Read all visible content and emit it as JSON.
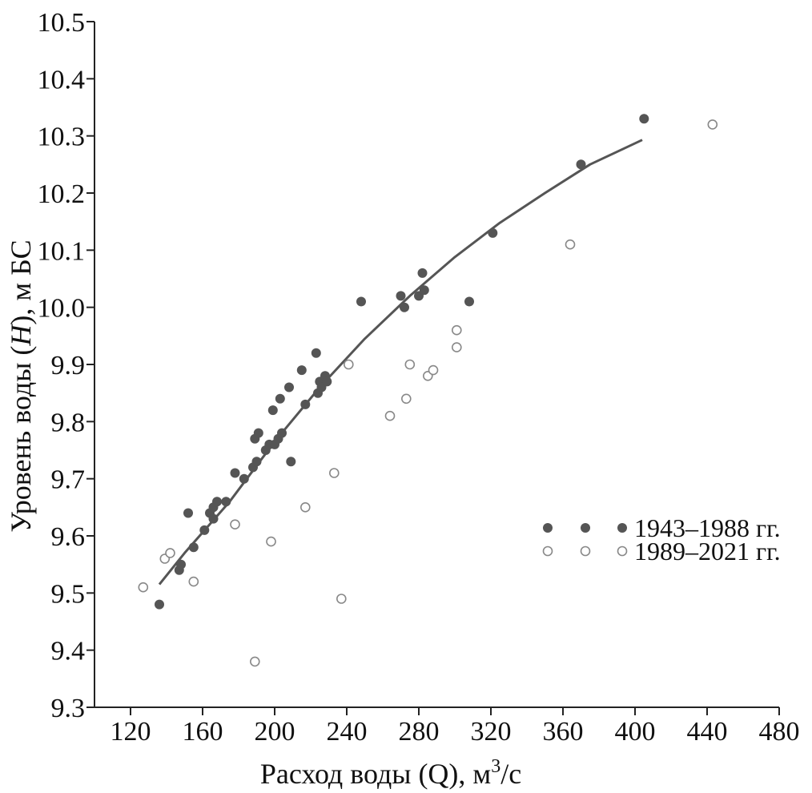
{
  "chart_data": {
    "type": "scatter",
    "xlabel": "Расход воды (Q), м",
    "xlabel_sup": "3",
    "xlabel_tail": "/с",
    "ylabel_pre": "Уровень воды (",
    "ylabel_var": "H",
    "ylabel_post": "), м БС",
    "xlim": [
      100,
      480
    ],
    "ylim": [
      9.3,
      10.5
    ],
    "xticks": [
      "120",
      "160",
      "200",
      "240",
      "280",
      "320",
      "360",
      "400",
      "440",
      "480"
    ],
    "xtick_values": [
      120,
      160,
      200,
      240,
      280,
      320,
      360,
      400,
      440,
      480
    ],
    "yticks": [
      "9.3",
      "9.4",
      "9.5",
      "9.6",
      "9.7",
      "9.8",
      "9.9",
      "10.0",
      "10.1",
      "10.2",
      "10.3",
      "10.4",
      "10.5"
    ],
    "ytick_values": [
      9.3,
      9.4,
      9.5,
      9.6,
      9.7,
      9.8,
      9.9,
      10.0,
      10.1,
      10.2,
      10.3,
      10.4,
      10.5
    ],
    "grid": false,
    "legend_position": "right-middle",
    "series": [
      {
        "name": "1943–1988 гг.",
        "marker": "filled-circle",
        "color": "#555555",
        "points": [
          [
            136,
            9.48
          ],
          [
            147,
            9.54
          ],
          [
            148,
            9.55
          ],
          [
            152,
            9.64
          ],
          [
            155,
            9.58
          ],
          [
            161,
            9.61
          ],
          [
            164,
            9.64
          ],
          [
            166,
            9.63
          ],
          [
            166,
            9.65
          ],
          [
            168,
            9.66
          ],
          [
            173,
            9.66
          ],
          [
            178,
            9.71
          ],
          [
            183,
            9.7
          ],
          [
            188,
            9.72
          ],
          [
            189,
            9.77
          ],
          [
            190,
            9.73
          ],
          [
            191,
            9.78
          ],
          [
            195,
            9.75
          ],
          [
            197,
            9.76
          ],
          [
            199,
            9.82
          ],
          [
            200,
            9.76
          ],
          [
            202,
            9.77
          ],
          [
            203,
            9.84
          ],
          [
            204,
            9.78
          ],
          [
            208,
            9.86
          ],
          [
            209,
            9.73
          ],
          [
            215,
            9.89
          ],
          [
            217,
            9.83
          ],
          [
            223,
            9.92
          ],
          [
            224,
            9.85
          ],
          [
            225,
            9.87
          ],
          [
            226,
            9.86
          ],
          [
            228,
            9.88
          ],
          [
            229,
            9.87
          ],
          [
            248,
            10.01
          ],
          [
            270,
            10.02
          ],
          [
            272,
            10.0
          ],
          [
            280,
            10.02
          ],
          [
            282,
            10.06
          ],
          [
            283,
            10.03
          ],
          [
            308,
            10.01
          ],
          [
            321,
            10.13
          ],
          [
            370,
            10.25
          ],
          [
            405,
            10.33
          ]
        ]
      },
      {
        "name": "1989–2021 гг.",
        "marker": "open-circle",
        "color": "#888888",
        "points": [
          [
            127,
            9.51
          ],
          [
            139,
            9.56
          ],
          [
            142,
            9.57
          ],
          [
            155,
            9.52
          ],
          [
            178,
            9.62
          ],
          [
            189,
            9.38
          ],
          [
            198,
            9.59
          ],
          [
            217,
            9.65
          ],
          [
            233,
            9.71
          ],
          [
            237,
            9.49
          ],
          [
            241,
            9.9
          ],
          [
            264,
            9.81
          ],
          [
            273,
            9.84
          ],
          [
            275,
            9.9
          ],
          [
            285,
            9.88
          ],
          [
            288,
            9.89
          ],
          [
            301,
            9.96
          ],
          [
            301,
            9.93
          ],
          [
            364,
            10.11
          ],
          [
            443,
            10.32
          ]
        ]
      }
    ],
    "trendline": {
      "color": "#555555",
      "points": [
        [
          136,
          9.515
        ],
        [
          150,
          9.57
        ],
        [
          175,
          9.66
        ],
        [
          200,
          9.765
        ],
        [
          225,
          9.86
        ],
        [
          250,
          9.945
        ],
        [
          275,
          10.02
        ],
        [
          300,
          10.088
        ],
        [
          325,
          10.148
        ],
        [
          350,
          10.2
        ],
        [
          375,
          10.25
        ],
        [
          404,
          10.293
        ]
      ]
    }
  }
}
